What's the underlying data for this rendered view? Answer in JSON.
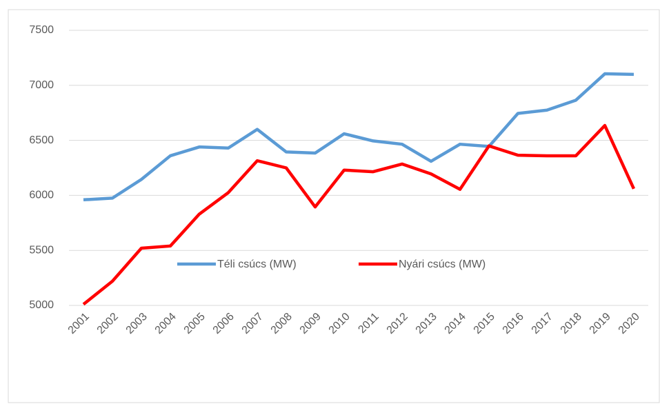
{
  "chart_data": {
    "type": "line",
    "categories": [
      "2001",
      "2002",
      "2003",
      "2004",
      "2005",
      "2006",
      "2007",
      "2008",
      "2009",
      "2010",
      "2011",
      "2012",
      "2013",
      "2014",
      "2015",
      "2016",
      "2017",
      "2018",
      "2019",
      "2020"
    ],
    "series": [
      {
        "name": "Téli csúcs (MW)",
        "color": "#5b9bd5",
        "values": [
          5960,
          5975,
          6145,
          6360,
          6440,
          6430,
          6600,
          6395,
          6385,
          6560,
          6495,
          6465,
          6310,
          6465,
          6445,
          6745,
          6775,
          6865,
          7105,
          7100
        ]
      },
      {
        "name": "Nyári csúcs (MW)",
        "color": "#ff0000",
        "values": [
          5010,
          5220,
          5520,
          5540,
          5830,
          6025,
          6315,
          6250,
          5895,
          6230,
          6215,
          6285,
          6195,
          6055,
          6450,
          6365,
          6360,
          6360,
          6635,
          6060
        ]
      }
    ],
    "ylim": [
      5000,
      7500
    ],
    "yticks": [
      5000,
      5500,
      6000,
      6500,
      7000,
      7500
    ],
    "grid": true,
    "legend": "bottom"
  }
}
